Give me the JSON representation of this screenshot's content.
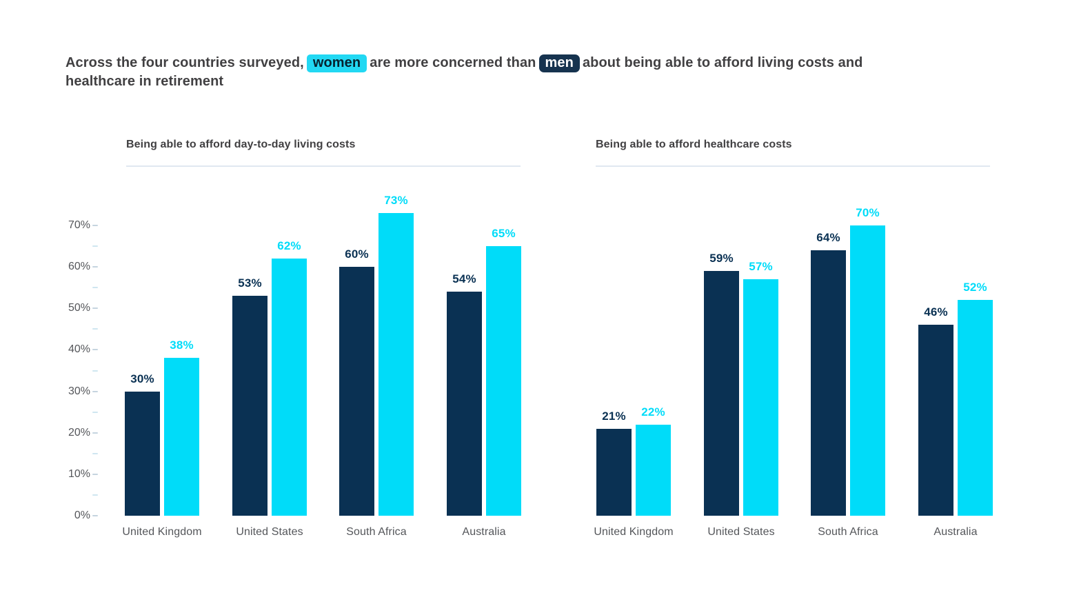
{
  "title": {
    "before": "Across the four countries surveyed,",
    "women_chip": "women",
    "middle": "are more concerned than",
    "men_chip": "men",
    "after": "about being able to afford living costs and",
    "line2": "healthcare in retirement"
  },
  "colors": {
    "men_bar": "#0A3153",
    "women_bar": "#00DCF9",
    "men_chip_bg": "#16334F",
    "women_chip_bg": "#22D8F3",
    "title_text": "#414042",
    "axis_text": "#54565A",
    "divider": "#E0E8F0"
  },
  "chart_data": [
    {
      "type": "bar",
      "title": "Being able to afford day-to-day living costs",
      "categories": [
        "United Kingdom",
        "United States",
        "South Africa",
        "Australia"
      ],
      "series": [
        {
          "name": "Men",
          "color": "#0A3153",
          "values": [
            30,
            53,
            60,
            54
          ]
        },
        {
          "name": "Women",
          "color": "#00DCF9",
          "values": [
            38,
            62,
            73,
            65
          ]
        }
      ],
      "value_suffix": "%",
      "ylim": [
        0,
        70
      ],
      "y_major_step": 10,
      "y_minor_step": 5,
      "y_axis_visible": true,
      "grid": false,
      "legend_position": "none"
    },
    {
      "type": "bar",
      "title": "Being able to afford healthcare costs",
      "categories": [
        "United Kingdom",
        "United States",
        "South Africa",
        "Australia"
      ],
      "series": [
        {
          "name": "Men",
          "color": "#0A3153",
          "values": [
            21,
            59,
            64,
            46
          ]
        },
        {
          "name": "Women",
          "color": "#00DCF9",
          "values": [
            22,
            57,
            70,
            52
          ]
        }
      ],
      "value_suffix": "%",
      "ylim": [
        0,
        70
      ],
      "y_major_step": 10,
      "y_minor_step": 5,
      "y_axis_visible": false,
      "grid": false,
      "legend_position": "none"
    }
  ]
}
